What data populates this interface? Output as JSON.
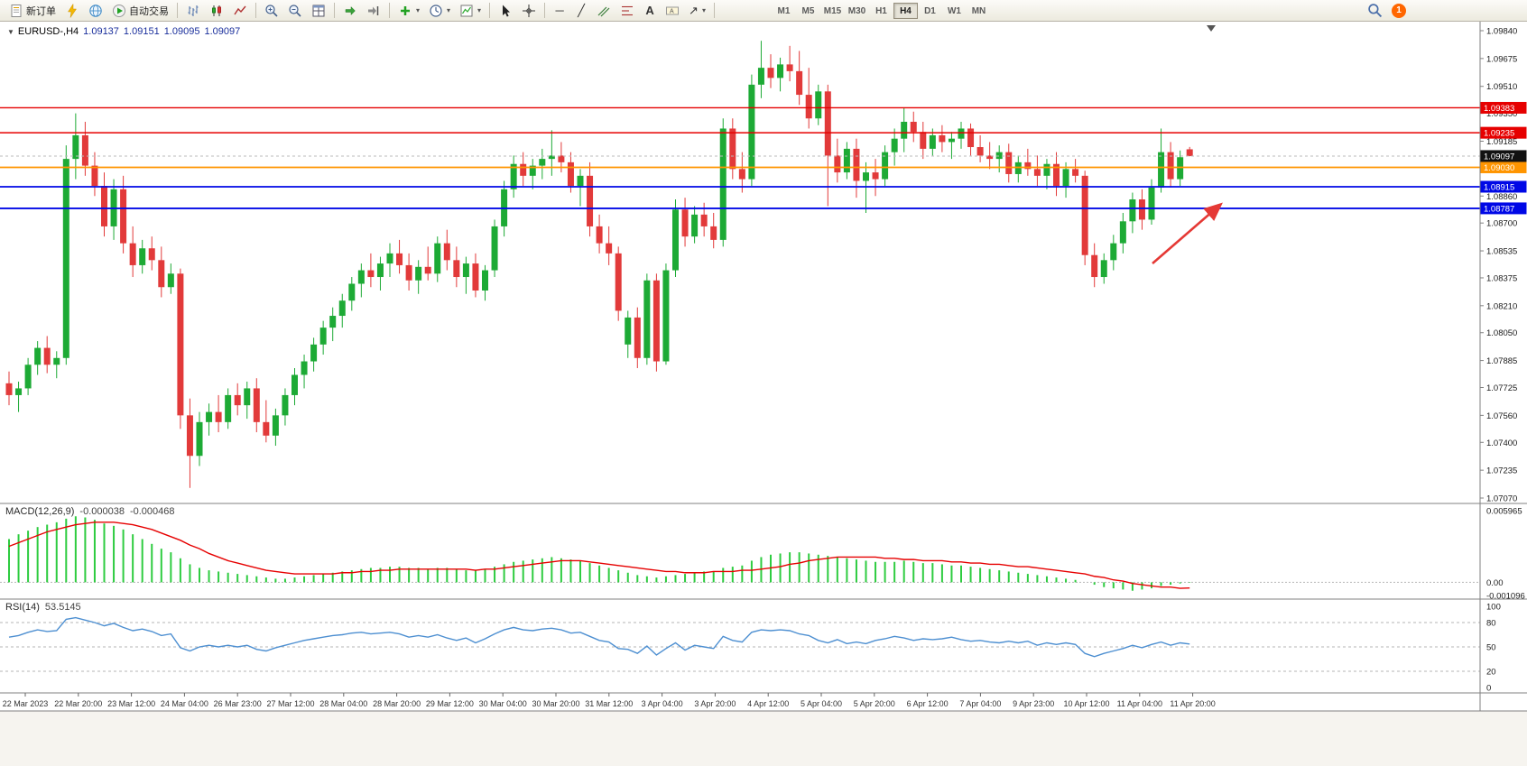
{
  "toolbar": {
    "new_order_label": "新订单",
    "autotrading_label": "自动交易",
    "timeframes": [
      "M1",
      "M5",
      "M15",
      "M30",
      "H1",
      "H4",
      "D1",
      "W1",
      "MN"
    ],
    "active_timeframe": "H4",
    "notification_count": "1",
    "icons": [
      "new-order-icon",
      "metaeditor-icon",
      "mql5-community-icon",
      "autotrading-icon",
      "bar-chart-icon",
      "candlestick-chart-icon",
      "line-chart-icon",
      "zoom-in-icon",
      "zoom-out-icon",
      "tile-windows-icon",
      "auto-scroll-icon",
      "chart-shift-icon",
      "indicators-icon",
      "periods-icon",
      "templates-icon",
      "cursor-icon",
      "crosshair-icon",
      "horizontal-line-icon",
      "trendline-icon",
      "equidistant-channel-icon",
      "fibonacci-icon",
      "text-icon",
      "text-label-icon",
      "arrows-icon",
      "search-icon",
      "notification-badge"
    ]
  },
  "chart": {
    "symbol_label": "EURUSD-,H4",
    "ohlc": {
      "open": "1.09137",
      "high": "1.09151",
      "low": "1.09095",
      "close": "1.09097"
    },
    "current_price": "1.09097",
    "price_range": {
      "max": 1.0984,
      "min": 1.0707
    },
    "price_axis": [
      "1.09840",
      "1.09675",
      "1.09510",
      "1.09350",
      "1.09185",
      "1.09020",
      "1.08860",
      "1.08700",
      "1.08535",
      "1.08375",
      "1.08210",
      "1.08050",
      "1.07885",
      "1.07725",
      "1.07560",
      "1.07400",
      "1.07235",
      "1.07070"
    ],
    "hlines": [
      {
        "label": "1.09383",
        "value": 1.09383,
        "color": "#e60000",
        "width": 1.4
      },
      {
        "label": "1.09235",
        "value": 1.09235,
        "color": "#e60000",
        "width": 1.4
      },
      {
        "label": "1.09030",
        "value": 1.0903,
        "color": "#ff9500",
        "width": 1.8
      },
      {
        "label": "1.08915",
        "value": 1.08915,
        "color": "#0008e6",
        "width": 1.8
      },
      {
        "label": "1.08787",
        "value": 1.08787,
        "color": "#0008e6",
        "width": 1.8
      }
    ],
    "time_axis": [
      "22 Mar 2023",
      "22 Mar 20:00",
      "23 Mar 12:00",
      "24 Mar 04:00",
      "26 Mar 23:00",
      "27 Mar 12:00",
      "28 Mar 04:00",
      "28 Mar 20:00",
      "29 Mar 12:00",
      "30 Mar 04:00",
      "30 Mar 20:00",
      "31 Mar 12:00",
      "3 Apr 04:00",
      "3 Apr 20:00",
      "4 Apr 12:00",
      "5 Apr 04:00",
      "5 Apr 20:00",
      "6 Apr 12:00",
      "7 Apr 04:00",
      "9 Apr 23:00",
      "10 Apr 12:00",
      "11 Apr 04:00",
      "11 Apr 20:00"
    ],
    "colors": {
      "up": "#1daa35",
      "down": "#e23a3a",
      "macd_histogram": "#2ecc40",
      "macd_signal": "#e60000",
      "rsi_line": "#4d8fd1",
      "current_price_bg": "#111111"
    }
  },
  "annotation": {
    "type": "arrow",
    "color": "#e53935",
    "direction": "up-right"
  },
  "chart_data": {
    "type": "candlestick",
    "title": "EURUSD-,H4",
    "symbol": "EURUSD-",
    "timeframe": "H4",
    "ylim": [
      1.0707,
      1.0984
    ],
    "candles_ohlc": [
      [
        1.0775,
        1.0782,
        1.0762,
        1.0768
      ],
      [
        1.0768,
        1.0776,
        1.0758,
        1.0772
      ],
      [
        1.0772,
        1.079,
        1.0768,
        1.0786
      ],
      [
        1.0786,
        1.08,
        1.078,
        1.0796
      ],
      [
        1.0796,
        1.0803,
        1.0781,
        1.0786
      ],
      [
        1.0786,
        1.0794,
        1.0778,
        1.079
      ],
      [
        1.079,
        1.0916,
        1.0786,
        1.0908
      ],
      [
        1.0908,
        1.0935,
        1.0896,
        1.0922
      ],
      [
        1.0922,
        1.093,
        1.0898,
        1.0904
      ],
      [
        1.0904,
        1.0912,
        1.0886,
        1.0892
      ],
      [
        1.0892,
        1.09,
        1.0862,
        1.0868
      ],
      [
        1.0868,
        1.0896,
        1.086,
        1.089
      ],
      [
        1.089,
        1.0898,
        1.0852,
        1.0858
      ],
      [
        1.0858,
        1.0868,
        1.0838,
        1.0845
      ],
      [
        1.0845,
        1.086,
        1.084,
        1.0855
      ],
      [
        1.0855,
        1.0862,
        1.0842,
        1.0848
      ],
      [
        1.0848,
        1.0856,
        1.0826,
        1.0832
      ],
      [
        1.0832,
        1.0846,
        1.0828,
        1.084
      ],
      [
        1.084,
        1.0843,
        1.0748,
        1.0756
      ],
      [
        1.0756,
        1.0766,
        1.0713,
        1.0732
      ],
      [
        1.0732,
        1.0758,
        1.0726,
        1.0752
      ],
      [
        1.0752,
        1.0763,
        1.0744,
        1.0758
      ],
      [
        1.0758,
        1.0768,
        1.0746,
        1.0752
      ],
      [
        1.0752,
        1.0772,
        1.0748,
        1.0768
      ],
      [
        1.0768,
        1.0775,
        1.0756,
        1.0762
      ],
      [
        1.0762,
        1.0776,
        1.0754,
        1.0772
      ],
      [
        1.0772,
        1.0778,
        1.0746,
        1.0752
      ],
      [
        1.0752,
        1.0765,
        1.074,
        1.0744
      ],
      [
        1.0744,
        1.076,
        1.0738,
        1.0756
      ],
      [
        1.0756,
        1.0772,
        1.075,
        1.0768
      ],
      [
        1.0768,
        1.0784,
        1.0762,
        1.078
      ],
      [
        1.078,
        1.0792,
        1.0772,
        1.0788
      ],
      [
        1.0788,
        1.0802,
        1.0782,
        1.0798
      ],
      [
        1.0798,
        1.0812,
        1.0792,
        1.0808
      ],
      [
        1.0808,
        1.082,
        1.08,
        1.0815
      ],
      [
        1.0815,
        1.0828,
        1.0808,
        1.0824
      ],
      [
        1.0824,
        1.0838,
        1.0818,
        1.0834
      ],
      [
        1.0834,
        1.0846,
        1.0826,
        1.0842
      ],
      [
        1.0842,
        1.0852,
        1.0832,
        1.0838
      ],
      [
        1.0838,
        1.085,
        1.083,
        1.0846
      ],
      [
        1.0846,
        1.0858,
        1.0838,
        1.0852
      ],
      [
        1.0852,
        1.086,
        1.084,
        1.0845
      ],
      [
        1.0845,
        1.0852,
        1.083,
        1.0836
      ],
      [
        1.0836,
        1.0848,
        1.0828,
        1.0844
      ],
      [
        1.0844,
        1.0856,
        1.0836,
        1.084
      ],
      [
        1.084,
        1.0862,
        1.0835,
        1.0858
      ],
      [
        1.0858,
        1.0866,
        1.0842,
        1.0848
      ],
      [
        1.0848,
        1.0856,
        1.0832,
        1.0838
      ],
      [
        1.0838,
        1.085,
        1.0828,
        1.0846
      ],
      [
        1.0846,
        1.0852,
        1.0826,
        1.083
      ],
      [
        1.083,
        1.0845,
        1.0824,
        1.0842
      ],
      [
        1.0842,
        1.0872,
        1.0838,
        1.0868
      ],
      [
        1.0868,
        1.0895,
        1.0862,
        1.089
      ],
      [
        1.089,
        1.091,
        1.0885,
        1.0905
      ],
      [
        1.0905,
        1.0912,
        1.0892,
        1.0898
      ],
      [
        1.0898,
        1.0908,
        1.089,
        1.0904
      ],
      [
        1.0904,
        1.0914,
        1.0896,
        1.0908
      ],
      [
        1.0908,
        1.0925,
        1.0898,
        1.091
      ],
      [
        1.091,
        1.0918,
        1.09,
        1.0906
      ],
      [
        1.0906,
        1.0912,
        1.0888,
        1.0892
      ],
      [
        1.0892,
        1.0902,
        1.088,
        1.0898
      ],
      [
        1.0898,
        1.0906,
        1.0862,
        1.0868
      ],
      [
        1.0868,
        1.0875,
        1.0852,
        1.0858
      ],
      [
        1.0858,
        1.0868,
        1.0845,
        1.0852
      ],
      [
        1.0852,
        1.0856,
        1.0812,
        1.0818
      ],
      [
        1.0798,
        1.0818,
        1.079,
        1.0814
      ],
      [
        1.0814,
        1.082,
        1.0784,
        1.079
      ],
      [
        1.079,
        1.084,
        1.0786,
        1.0836
      ],
      [
        1.0836,
        1.084,
        1.0782,
        1.0788
      ],
      [
        1.0788,
        1.0846,
        1.0786,
        1.0842
      ],
      [
        1.0842,
        1.0884,
        1.0838,
        1.0878
      ],
      [
        1.0878,
        1.0885,
        1.0856,
        1.0862
      ],
      [
        1.0862,
        1.088,
        1.0858,
        1.0875
      ],
      [
        1.0875,
        1.0882,
        1.0862,
        1.0868
      ],
      [
        1.0868,
        1.0876,
        1.0855,
        1.086
      ],
      [
        1.086,
        1.0932,
        1.0856,
        1.0926
      ],
      [
        1.0926,
        1.0932,
        1.0896,
        1.0902
      ],
      [
        1.0902,
        1.0912,
        1.0888,
        1.0896
      ],
      [
        1.0896,
        1.0958,
        1.0892,
        1.0952
      ],
      [
        1.0952,
        1.0978,
        1.0944,
        1.0962
      ],
      [
        1.0962,
        1.097,
        1.095,
        1.0956
      ],
      [
        1.0956,
        1.0968,
        1.0948,
        1.0964
      ],
      [
        1.0964,
        1.0975,
        1.0954,
        1.096
      ],
      [
        1.096,
        1.0972,
        1.094,
        1.0946
      ],
      [
        1.0946,
        1.0962,
        1.0926,
        1.0932
      ],
      [
        1.0932,
        1.0952,
        1.0928,
        1.0948
      ],
      [
        1.0948,
        1.0952,
        1.088,
        1.091
      ],
      [
        1.091,
        1.092,
        1.0894,
        1.09
      ],
      [
        1.09,
        1.0918,
        1.0896,
        1.0914
      ],
      [
        1.0914,
        1.092,
        1.0885,
        1.0895
      ],
      [
        1.0895,
        1.0906,
        1.0876,
        1.09
      ],
      [
        1.09,
        1.0908,
        1.0886,
        1.0896
      ],
      [
        1.0896,
        1.0916,
        1.0892,
        1.0912
      ],
      [
        1.0912,
        1.0926,
        1.0904,
        1.092
      ],
      [
        1.092,
        1.0938,
        1.0912,
        1.093
      ],
      [
        1.093,
        1.0936,
        1.0918,
        1.0924
      ],
      [
        1.0924,
        1.093,
        1.0908,
        1.0914
      ],
      [
        1.0914,
        1.0926,
        1.091,
        1.0922
      ],
      [
        1.0922,
        1.0928,
        1.0912,
        1.0918
      ],
      [
        1.0918,
        1.0924,
        1.0908,
        1.092
      ],
      [
        1.092,
        1.093,
        1.0914,
        1.0926
      ],
      [
        1.0926,
        1.0929,
        1.091,
        1.0915
      ],
      [
        1.0915,
        1.0922,
        1.0906,
        1.091
      ],
      [
        1.091,
        1.0918,
        1.0902,
        1.0908
      ],
      [
        1.0908,
        1.0916,
        1.09,
        1.0912
      ],
      [
        1.0912,
        1.0917,
        1.0894,
        1.0899
      ],
      [
        1.0899,
        1.091,
        1.0894,
        1.0906
      ],
      [
        1.0906,
        1.0914,
        1.0898,
        1.0902
      ],
      [
        1.0902,
        1.091,
        1.0892,
        1.0898
      ],
      [
        1.0898,
        1.0908,
        1.089,
        1.0905
      ],
      [
        1.0905,
        1.0912,
        1.0886,
        1.0892
      ],
      [
        1.0892,
        1.0906,
        1.0885,
        1.0902
      ],
      [
        1.0902,
        1.0908,
        1.0894,
        1.0898
      ],
      [
        1.0898,
        1.0901,
        1.0845,
        1.0851
      ],
      [
        1.0851,
        1.0858,
        1.0832,
        1.0838
      ],
      [
        1.0838,
        1.0852,
        1.0834,
        1.0848
      ],
      [
        1.0848,
        1.0863,
        1.0842,
        1.0858
      ],
      [
        1.0858,
        1.0876,
        1.0852,
        1.0871
      ],
      [
        1.0871,
        1.0888,
        1.0864,
        1.0884
      ],
      [
        1.0884,
        1.089,
        1.0866,
        1.0872
      ],
      [
        1.0872,
        1.0896,
        1.0869,
        1.0891
      ],
      [
        1.0891,
        1.0926,
        1.0888,
        1.0912
      ],
      [
        1.0912,
        1.0918,
        1.0891,
        1.0896
      ],
      [
        1.0896,
        1.0913,
        1.0892,
        1.0909
      ],
      [
        1.09137,
        1.09151,
        1.09095,
        1.09097
      ]
    ],
    "macd": {
      "label": "MACD(12,26,9)",
      "value_main": "-0.000038",
      "value_signal": "-0.000468",
      "axis": [
        "0.005965",
        "0.00",
        "-0.001096"
      ],
      "range": {
        "max": 0.005965,
        "min": -0.001096
      },
      "histogram": [
        0.0036,
        0.004,
        0.0043,
        0.0046,
        0.0048,
        0.005,
        0.0053,
        0.0055,
        0.0054,
        0.0052,
        0.0049,
        0.0047,
        0.0044,
        0.004,
        0.0036,
        0.0032,
        0.0028,
        0.0025,
        0.002,
        0.0015,
        0.0012,
        0.001,
        0.0009,
        0.0008,
        0.0007,
        0.0006,
        0.0005,
        0.0004,
        0.0003,
        0.0003,
        0.0004,
        0.0005,
        0.0006,
        0.0007,
        0.0008,
        0.0009,
        0.001,
        0.0011,
        0.0012,
        0.0012,
        0.0013,
        0.0013,
        0.0012,
        0.0012,
        0.0011,
        0.0012,
        0.0012,
        0.0011,
        0.001,
        0.001,
        0.0011,
        0.0013,
        0.0015,
        0.0017,
        0.0018,
        0.0019,
        0.002,
        0.0021,
        0.002,
        0.0019,
        0.0018,
        0.0016,
        0.0014,
        0.0012,
        0.001,
        0.0008,
        0.0006,
        0.0005,
        0.0004,
        0.0005,
        0.0006,
        0.0007,
        0.0008,
        0.0009,
        0.0009,
        0.0012,
        0.0013,
        0.0014,
        0.0018,
        0.0021,
        0.0023,
        0.0024,
        0.0025,
        0.0025,
        0.0024,
        0.0023,
        0.0022,
        0.0021,
        0.002,
        0.0019,
        0.0018,
        0.0017,
        0.0017,
        0.0017,
        0.0018,
        0.0017,
        0.0016,
        0.0016,
        0.0015,
        0.0014,
        0.0014,
        0.0013,
        0.0012,
        0.0011,
        0.001,
        0.0009,
        0.0008,
        0.0007,
        0.0006,
        0.0005,
        0.0004,
        0.0003,
        0.0002,
        0.0,
        -0.0002,
        -0.0004,
        -0.0005,
        -0.0006,
        -0.0007,
        -0.0006,
        -0.0005,
        -0.0003,
        -0.0002,
        -0.0001,
        -4e-05
      ],
      "signal": [
        0.003,
        0.0033,
        0.0036,
        0.0039,
        0.0042,
        0.0044,
        0.0046,
        0.0048,
        0.0049,
        0.005,
        0.005,
        0.005,
        0.0049,
        0.0048,
        0.0046,
        0.0044,
        0.0041,
        0.0038,
        0.0035,
        0.0031,
        0.0028,
        0.0024,
        0.0021,
        0.0018,
        0.0016,
        0.0014,
        0.0012,
        0.001,
        0.0009,
        0.0008,
        0.0007,
        0.0007,
        0.0007,
        0.0007,
        0.0007,
        0.0008,
        0.0008,
        0.0009,
        0.0009,
        0.001,
        0.001,
        0.0011,
        0.0011,
        0.0011,
        0.0011,
        0.0011,
        0.0011,
        0.0011,
        0.0011,
        0.001,
        0.0011,
        0.0011,
        0.0012,
        0.0013,
        0.0014,
        0.0015,
        0.0016,
        0.0017,
        0.0018,
        0.0018,
        0.0018,
        0.0017,
        0.0016,
        0.0015,
        0.0014,
        0.0013,
        0.0012,
        0.0011,
        0.001,
        0.0009,
        0.0009,
        0.0008,
        0.0008,
        0.0008,
        0.0009,
        0.0009,
        0.0009,
        0.001,
        0.001,
        0.0011,
        0.0012,
        0.0013,
        0.0015,
        0.0016,
        0.0018,
        0.0019,
        0.002,
        0.0021,
        0.0021,
        0.0021,
        0.0021,
        0.0021,
        0.002,
        0.002,
        0.0019,
        0.0019,
        0.0018,
        0.0018,
        0.0018,
        0.0017,
        0.0017,
        0.0016,
        0.0016,
        0.0015,
        0.0015,
        0.0014,
        0.0013,
        0.0013,
        0.0012,
        0.0011,
        0.001,
        0.0009,
        0.0008,
        0.0007,
        0.0005,
        0.0004,
        0.0002,
        0.0001,
        -0.0001,
        -0.0002,
        -0.0003,
        -0.0004,
        -0.0004,
        -0.0005,
        -0.000468
      ]
    },
    "rsi": {
      "label": "RSI(14)",
      "value": "53.5145",
      "levels": [
        80,
        50,
        20
      ],
      "axis": [
        "100",
        "80",
        "50",
        "20",
        "0"
      ],
      "series": [
        62,
        64,
        68,
        71,
        69,
        70,
        84,
        86,
        83,
        80,
        76,
        79,
        74,
        70,
        72,
        69,
        64,
        66,
        49,
        45,
        50,
        52,
        50,
        52,
        50,
        52,
        47,
        45,
        49,
        52,
        55,
        58,
        60,
        62,
        64,
        65,
        67,
        68,
        66,
        67,
        68,
        66,
        62,
        64,
        62,
        65,
        61,
        58,
        61,
        55,
        60,
        66,
        71,
        74,
        71,
        70,
        72,
        73,
        71,
        67,
        68,
        63,
        58,
        56,
        48,
        47,
        42,
        51,
        40,
        48,
        55,
        46,
        52,
        50,
        48,
        63,
        58,
        56,
        68,
        71,
        70,
        71,
        70,
        66,
        64,
        58,
        55,
        59,
        54,
        56,
        54,
        58,
        60,
        63,
        61,
        58,
        60,
        59,
        60,
        62,
        59,
        57,
        58,
        56,
        55,
        57,
        55,
        57,
        52,
        55,
        53,
        55,
        53,
        42,
        38,
        42,
        45,
        48,
        52,
        49,
        53,
        56,
        52,
        55,
        53.5
      ]
    }
  }
}
